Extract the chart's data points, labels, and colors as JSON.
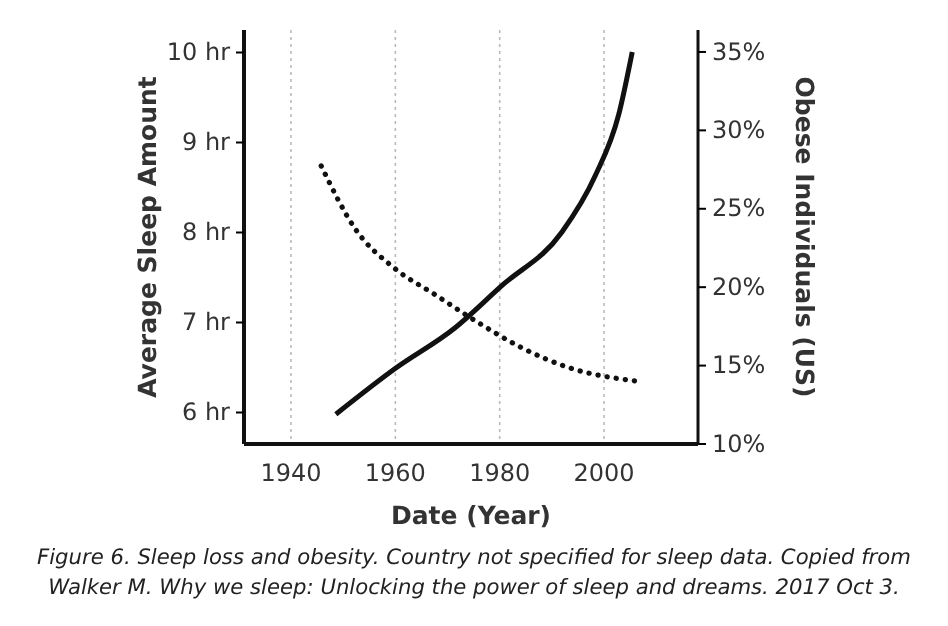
{
  "chart_data": {
    "type": "line",
    "xlabel": "Date (Year)",
    "ylabel": "Average Sleep Amount",
    "y2label": "Obese Individuals (US)",
    "xlim": [
      1931,
      2018
    ],
    "xticks": [
      1940,
      1960,
      1980,
      2000
    ],
    "ylim": [
      5.65,
      10.25
    ],
    "yticks": [
      {
        "value": 6,
        "label": "6 hr"
      },
      {
        "value": 7,
        "label": "7 hr"
      },
      {
        "value": 8,
        "label": "8 hr"
      },
      {
        "value": 9,
        "label": "9 hr"
      },
      {
        "value": 10,
        "label": "10 hr"
      }
    ],
    "y2lim": [
      10,
      36.4
    ],
    "y2ticks": [
      {
        "value": 10,
        "label": "10%"
      },
      {
        "value": 15,
        "label": "15%"
      },
      {
        "value": 20,
        "label": "20%"
      },
      {
        "value": 25,
        "label": "25%"
      },
      {
        "value": 30,
        "label": "30%"
      },
      {
        "value": 35,
        "label": "35%"
      }
    ],
    "grid": "x",
    "series": [
      {
        "color": "#111111",
        "line_style": "dotted",
        "x": [
          1945.8,
          1952.2,
          1959.9,
          1967.6,
          1975.3,
          1984.2,
          1993.2,
          2006
        ],
        "values": [
          8.74,
          8.05,
          7.6,
          7.31,
          7.02,
          6.72,
          6.5,
          6.35
        ]
      },
      {
        "color": "#111111",
        "line_style": "solid",
        "axis": "y2",
        "x": [
          1948.6,
          1959.9,
          1971.4,
          1980.4,
          1991.9,
          1998.3,
          2002.8,
          2005.4
        ],
        "values": [
          11.9,
          14.8,
          17.4,
          20.1,
          23.5,
          27.1,
          31.0,
          35
        ]
      }
    ],
    "annotations": [
      "Figure 6. Sleep loss and obesity. Country not specified for sleep data. Copied from Walker M. Why we sleep: Unlocking the power of sleep and dreams. 2017 Oct 3."
    ]
  }
}
